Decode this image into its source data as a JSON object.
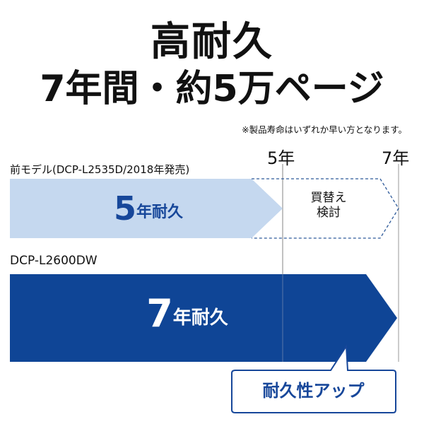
{
  "header": {
    "title_line1": "高耐久",
    "title_line2": "7年間・約5万ページ",
    "note": "※製品寿命はいずれか早い方となります。"
  },
  "timeline": {
    "markers": [
      "5年",
      "7年"
    ]
  },
  "previous_model": {
    "label": "前モデル(DCP-L2535D/2018年発売)",
    "years": "5",
    "unit": "年耐久",
    "extension_text": "買替え検討",
    "color": "#c5d8ef"
  },
  "new_model": {
    "label": "DCP-L2600DW",
    "years": "7",
    "unit": "年耐久",
    "color": "#0f4596"
  },
  "callout": {
    "text": "耐久性アップ",
    "color": "#17479a"
  }
}
